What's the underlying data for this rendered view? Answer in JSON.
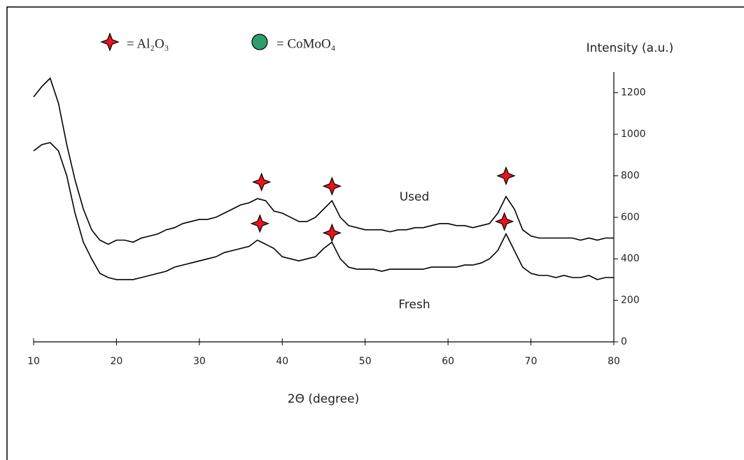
{
  "chart_data": {
    "type": "line",
    "y_axis_label": "Intensity (a.u.)",
    "x_axis_label": "2Θ (degree)",
    "xlim": [
      10,
      80
    ],
    "xticks": [
      10,
      20,
      30,
      40,
      50,
      60,
      70,
      80
    ],
    "ylim": [
      0,
      1300
    ],
    "yticks": [
      0,
      200,
      400,
      600,
      800,
      1000,
      1200
    ],
    "y_axis_side": "right",
    "x": [
      10,
      11,
      12,
      13,
      14,
      15,
      16,
      17,
      18,
      19,
      20,
      21,
      22,
      23,
      24,
      25,
      26,
      27,
      28,
      29,
      30,
      31,
      32,
      33,
      34,
      35,
      36,
      37,
      38,
      39,
      40,
      41,
      42,
      43,
      44,
      45,
      46,
      47,
      48,
      49,
      50,
      51,
      52,
      53,
      54,
      55,
      56,
      57,
      58,
      59,
      60,
      61,
      62,
      63,
      64,
      65,
      66,
      67,
      68,
      69,
      70,
      71,
      72,
      73,
      74,
      75,
      76,
      77,
      78,
      79,
      80
    ],
    "series": [
      {
        "name": "Used",
        "color": "#000000",
        "values": [
          1180,
          1230,
          1270,
          1150,
          950,
          780,
          640,
          540,
          490,
          470,
          490,
          490,
          480,
          500,
          510,
          520,
          540,
          550,
          570,
          580,
          590,
          590,
          600,
          620,
          640,
          660,
          670,
          690,
          680,
          630,
          620,
          600,
          580,
          580,
          600,
          640,
          680,
          600,
          560,
          550,
          540,
          540,
          540,
          530,
          540,
          540,
          550,
          550,
          560,
          570,
          570,
          560,
          560,
          550,
          560,
          570,
          620,
          700,
          640,
          540,
          510,
          500,
          500,
          500,
          500,
          500,
          490,
          500,
          490,
          500,
          500
        ]
      },
      {
        "name": "Fresh",
        "color": "#000000",
        "values": [
          920,
          950,
          960,
          920,
          800,
          620,
          480,
          400,
          330,
          310,
          300,
          300,
          300,
          310,
          320,
          330,
          340,
          360,
          370,
          380,
          390,
          400,
          410,
          430,
          440,
          450,
          460,
          490,
          470,
          450,
          410,
          400,
          390,
          400,
          410,
          450,
          480,
          400,
          360,
          350,
          350,
          350,
          340,
          350,
          350,
          350,
          350,
          350,
          360,
          360,
          360,
          360,
          370,
          370,
          380,
          400,
          440,
          520,
          440,
          360,
          330,
          320,
          320,
          310,
          320,
          310,
          310,
          320,
          300,
          310,
          310
        ]
      }
    ],
    "legend": [
      {
        "name": "= Al₂O₃",
        "shape": "star",
        "color": "#e8141c"
      },
      {
        "name": "= CoMoO₄",
        "shape": "circle",
        "color": "#2e9e6a"
      }
    ],
    "markers": [
      {
        "x": 37.5,
        "y": 770,
        "shape": "star"
      },
      {
        "x": 46,
        "y": 750,
        "shape": "star"
      },
      {
        "x": 67,
        "y": 800,
        "shape": "star"
      },
      {
        "x": 37.3,
        "y": 570,
        "shape": "star"
      },
      {
        "x": 46,
        "y": 525,
        "shape": "star"
      },
      {
        "x": 66.8,
        "y": 580,
        "shape": "star"
      }
    ]
  }
}
